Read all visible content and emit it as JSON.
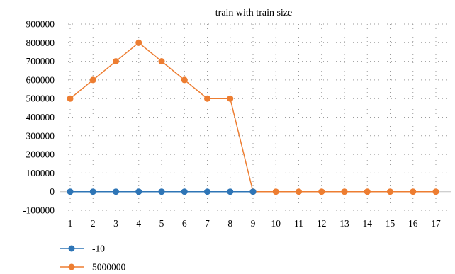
{
  "chart_data": {
    "type": "line",
    "title": "train with train size",
    "xlabel": "",
    "ylabel": "",
    "categories": [
      "1",
      "2",
      "3",
      "4",
      "5",
      "6",
      "7",
      "8",
      "9",
      "10",
      "11",
      "12",
      "13",
      "14",
      "15",
      "16",
      "17"
    ],
    "ylim": [
      -100000,
      900000
    ],
    "yticks": [
      -100000,
      0,
      100000,
      200000,
      300000,
      400000,
      500000,
      600000,
      700000,
      800000,
      900000
    ],
    "grid": "dotted",
    "legend_position": "bottom-left",
    "series": [
      {
        "name": "-10",
        "color": "#2e75b6",
        "values": [
          0,
          0,
          0,
          0,
          0,
          0,
          0,
          0,
          0,
          null,
          null,
          null,
          null,
          null,
          null,
          null,
          null
        ]
      },
      {
        "name": "5000000",
        "color": "#ed7d31",
        "values": [
          500000,
          600000,
          700000,
          800000,
          700000,
          600000,
          500000,
          500000,
          0,
          0,
          0,
          0,
          0,
          0,
          0,
          0,
          0
        ]
      }
    ]
  }
}
